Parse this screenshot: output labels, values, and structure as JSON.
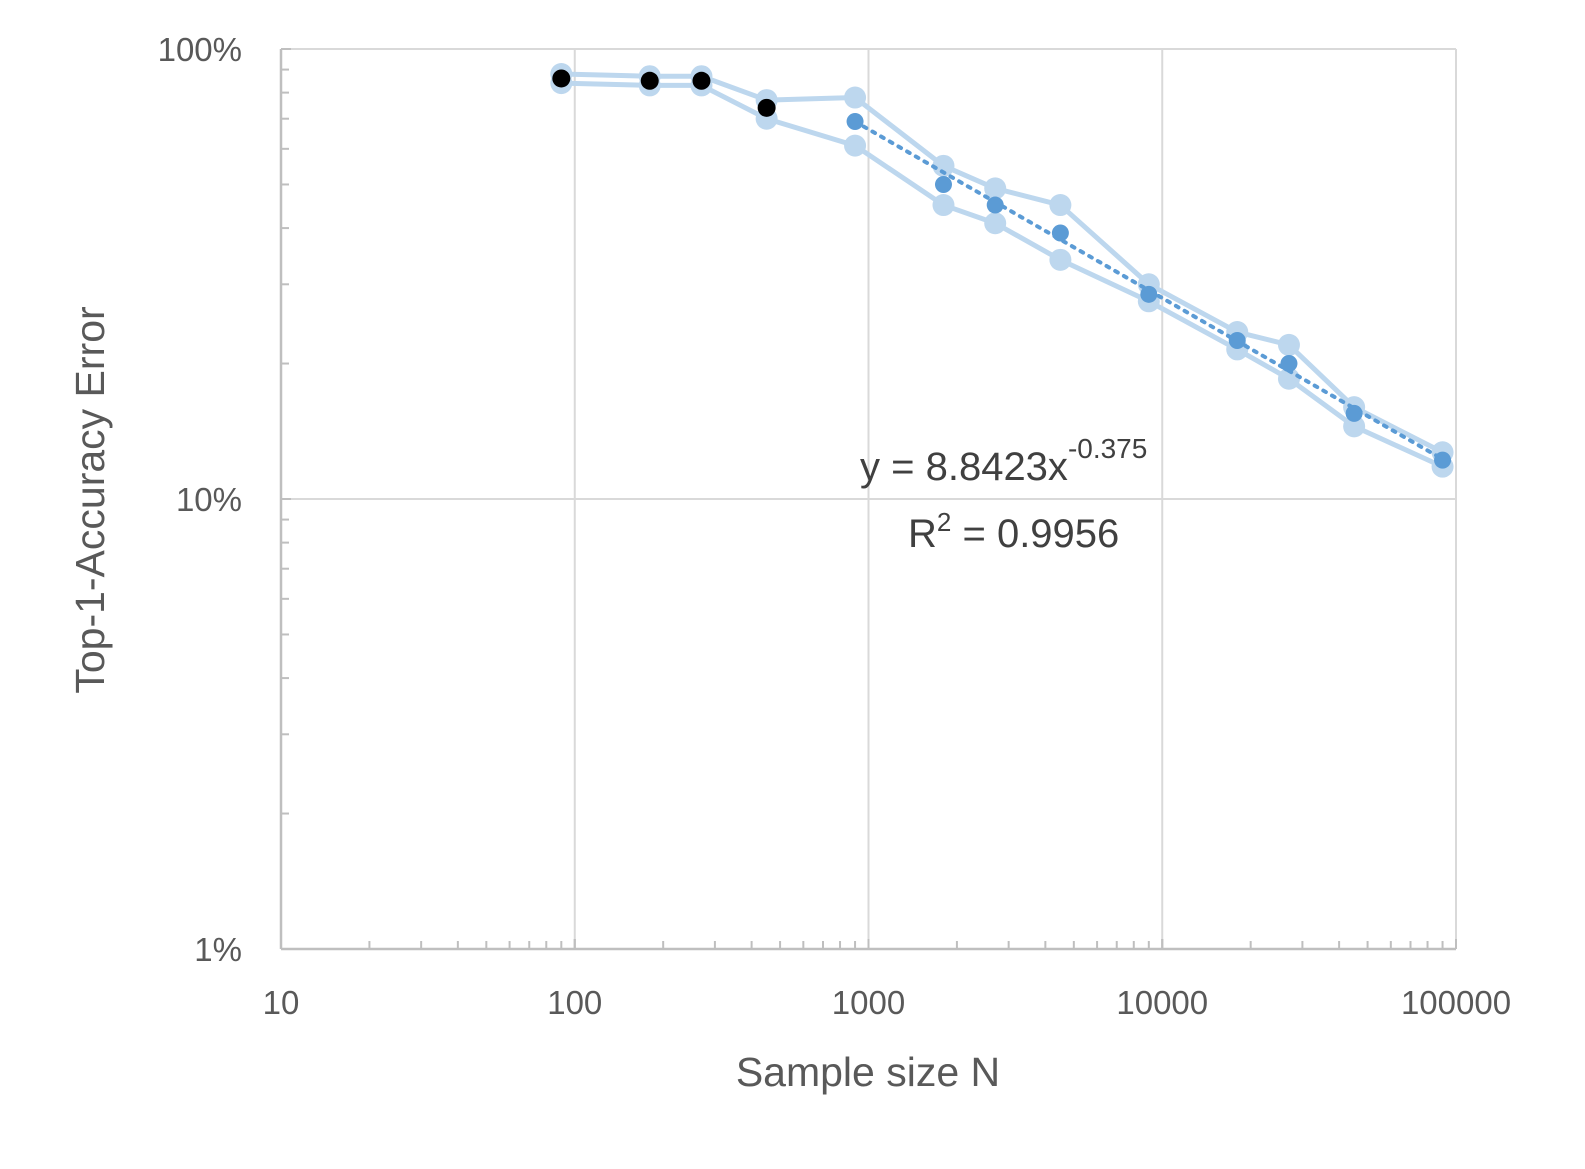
{
  "chart_data": {
    "type": "scatter",
    "xlabel": "Sample size N",
    "ylabel": "Top-1-Accuracy Error",
    "x_scale": "log",
    "y_scale": "log",
    "xlim": [
      10,
      100000
    ],
    "ylim": [
      0.01,
      1
    ],
    "x_ticks": [
      {
        "value": 10,
        "label": "10"
      },
      {
        "value": 100,
        "label": "100"
      },
      {
        "value": 1000,
        "label": "1000"
      },
      {
        "value": 10000,
        "label": "10000"
      },
      {
        "value": 100000,
        "label": "100000"
      }
    ],
    "y_ticks": [
      {
        "value": 1,
        "label": "100%"
      },
      {
        "value": 0.1,
        "label": "10%"
      },
      {
        "value": 0.01,
        "label": "1%"
      }
    ],
    "grid": true,
    "trendline": {
      "equation_prefix": "y = 8.8423x",
      "equation_exponent": "-0.375",
      "r2_prefix": "R",
      "r2_sup": "2",
      "r2_suffix": " = 0.9956",
      "coefficient": 8.8423,
      "exponent": -0.375,
      "x_range": [
        900,
        90000
      ]
    },
    "series": [
      {
        "color": "#000000",
        "x": [
          90,
          180,
          270,
          450
        ],
        "y": [
          0.86,
          0.85,
          0.85,
          0.74
        ]
      },
      {
        "color": "#5b9bd5",
        "x": [
          900,
          1800,
          2700,
          4500,
          9000,
          18000,
          27000,
          45000,
          90000
        ],
        "y": [
          0.69,
          0.5,
          0.45,
          0.39,
          0.285,
          0.225,
          0.2,
          0.155,
          0.122
        ]
      },
      {
        "color": "#bdd7ee",
        "x": [
          90,
          180,
          270,
          450,
          900,
          1800,
          2700,
          4500,
          9000,
          18000,
          27000,
          45000,
          90000
        ],
        "y": [
          0.88,
          0.87,
          0.87,
          0.77,
          0.78,
          0.55,
          0.49,
          0.45,
          0.3,
          0.235,
          0.22,
          0.16,
          0.127
        ]
      },
      {
        "color": "#bdd7ee",
        "x": [
          90,
          180,
          270,
          450,
          900,
          1800,
          2700,
          4500,
          9000,
          18000,
          27000,
          45000,
          90000
        ],
        "y": [
          0.84,
          0.83,
          0.83,
          0.7,
          0.61,
          0.45,
          0.41,
          0.34,
          0.275,
          0.215,
          0.185,
          0.145,
          0.118
        ]
      }
    ]
  }
}
